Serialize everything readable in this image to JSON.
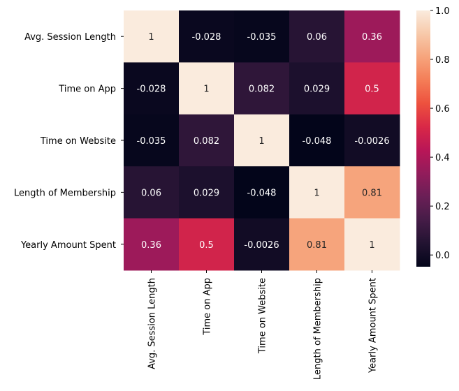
{
  "chart_data": {
    "type": "heatmap",
    "title": "",
    "xlabel": "",
    "ylabel": "",
    "rows": [
      "Avg. Session Length",
      "Time on App",
      "Time on Website",
      "Length of Membership",
      "Yearly Amount Spent"
    ],
    "columns": [
      "Avg. Session Length",
      "Time on App",
      "Time on Website",
      "Length of Membership",
      "Yearly Amount Spent"
    ],
    "values": [
      [
        1,
        -0.028,
        -0.035,
        0.06,
        0.36
      ],
      [
        -0.028,
        1,
        0.082,
        0.029,
        0.5
      ],
      [
        -0.035,
        0.082,
        1,
        -0.048,
        -0.0026
      ],
      [
        0.06,
        0.029,
        -0.048,
        1,
        0.81
      ],
      [
        0.36,
        0.5,
        -0.0026,
        0.81,
        1
      ]
    ],
    "annotations": [
      [
        "1",
        "-0.028",
        "-0.035",
        "0.06",
        "0.36"
      ],
      [
        "-0.028",
        "1",
        "0.082",
        "0.029",
        "0.5"
      ],
      [
        "-0.035",
        "0.082",
        "1",
        "-0.048",
        "-0.0026"
      ],
      [
        "0.06",
        "0.029",
        "-0.048",
        "1",
        "0.81"
      ],
      [
        "0.36",
        "0.5",
        "-0.0026",
        "0.81",
        "1"
      ]
    ],
    "colorscale": "rocket",
    "color_range": [
      -0.048,
      1
    ],
    "colorbar_ticks": [
      0.0,
      0.2,
      0.4,
      0.6,
      0.8,
      1.0
    ],
    "colorbar_tick_labels": [
      "0.0",
      "0.2",
      "0.4",
      "0.6",
      "0.8",
      "1.0"
    ],
    "colors": {
      "stops": [
        "#03051a",
        "#221331",
        "#451c47",
        "#6a1f56",
        "#921c5b",
        "#b91657",
        "#d92847",
        "#ed513e",
        "#f47d57",
        "#f6a47c",
        "#f7c9aa",
        "#faebdd"
      ],
      "text_dark": "#262626",
      "text_light": "#ffffff"
    }
  }
}
